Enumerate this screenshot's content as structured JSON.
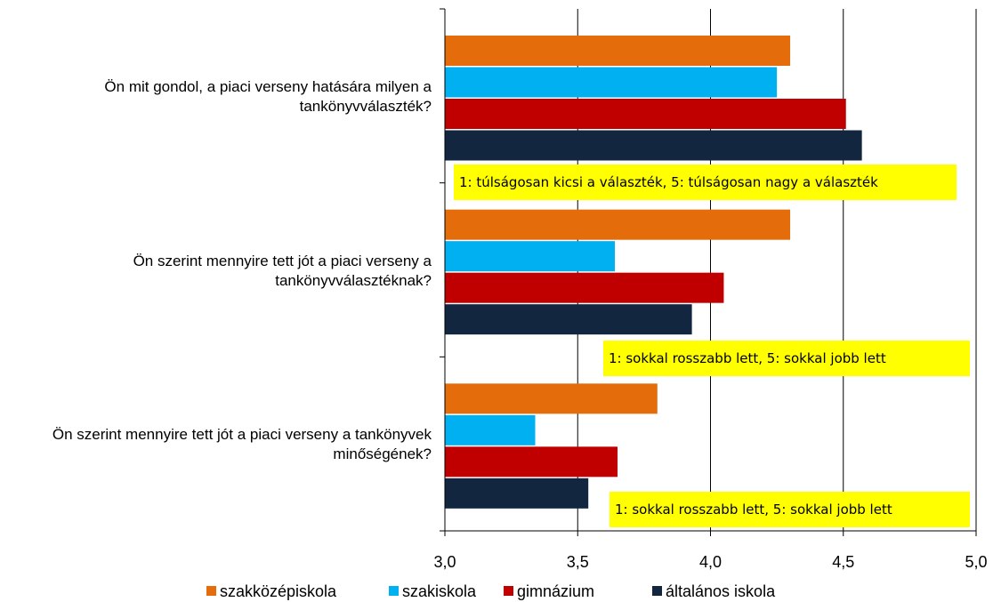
{
  "chart_data": {
    "type": "hbar",
    "categories": [
      "Ön mit gondol, a piaci verseny hatására milyen a tankönyvválaszték?",
      "Ön szerint mennyire tett jót a piaci verseny a tankönyvválasztéknak?",
      "Ön szerint mennyire tett jót a piaci verseny a tankönyvek minőségének?"
    ],
    "series": [
      {
        "name": "szakközépiskola",
        "color": "#e46c0a",
        "values": [
          4.3,
          4.3,
          3.8
        ]
      },
      {
        "name": "szakiskola",
        "color": "#00b0f0",
        "values": [
          4.25,
          3.64,
          3.34
        ]
      },
      {
        "name": "gimnázium",
        "color": "#c00000",
        "values": [
          4.51,
          4.05,
          3.65
        ]
      },
      {
        "name": "általános iskola",
        "color": "#132640",
        "values": [
          4.57,
          3.93,
          3.54
        ]
      }
    ],
    "xlim": [
      3.0,
      5.0
    ],
    "xticks": [
      {
        "value": 3.0,
        "label": "3,0"
      },
      {
        "value": 3.5,
        "label": "3,5"
      },
      {
        "value": 4.0,
        "label": "4,0"
      },
      {
        "value": 4.5,
        "label": "4,5"
      },
      {
        "value": 5.0,
        "label": "5,0"
      }
    ],
    "grid": true,
    "legend": "bottom",
    "annotations": [
      "1: túlságosan kicsi a választék, 5: túlságosan nagy a választék",
      "1: sokkal rosszabb lett, 5: sokkal jobb lett",
      "1: sokkal rosszabb lett, 5: sokkal jobb lett"
    ]
  }
}
